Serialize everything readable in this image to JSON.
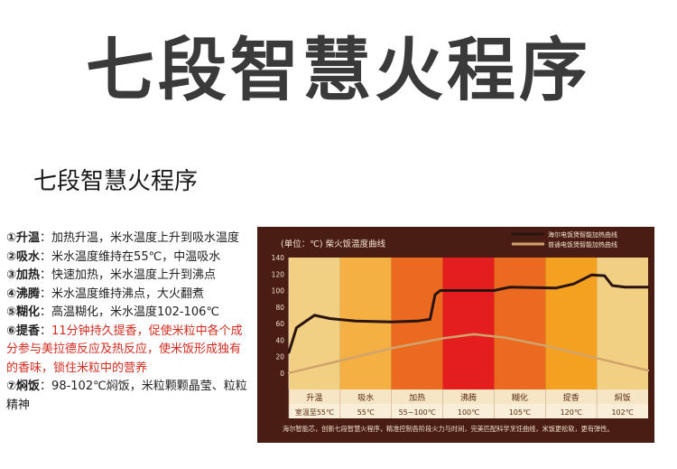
{
  "headline": "七段智慧火程序",
  "subheadline": "七段智慧火程序",
  "steps": [
    {
      "num": "①",
      "name": "升温",
      "sep": "：",
      "desc": "加热升温，米水温度上升到吸水温度",
      "red": false
    },
    {
      "num": "②",
      "name": "吸水",
      "sep": "：",
      "desc": "米水温度维持在55℃，中温吸水",
      "red": false
    },
    {
      "num": "③",
      "name": "加热",
      "sep": "：",
      "desc": "快速加热，米水温度上升到沸点",
      "red": false
    },
    {
      "num": "④",
      "name": "沸腾",
      "sep": "：",
      "desc": "米水温度维持沸点，大火翻煮",
      "red": false
    },
    {
      "num": "⑤",
      "name": "糊化",
      "sep": "：",
      "desc": "高温糊化，米水温度102-106℃",
      "red": false
    },
    {
      "num": "⑥",
      "name": "提香",
      "sep": "：",
      "desc": "11分钟持久提香，促使米粒中各个成分参与美拉德反应及热反应，使米饭形成独有的香味，锁住米粒中的营养",
      "red": true
    },
    {
      "num": "⑦",
      "name": "焖饭",
      "sep": "：",
      "desc": "98-102℃焖饭，米粒颗颗晶莹、粒粒精神",
      "red": false
    }
  ],
  "chart_data": {
    "type": "line",
    "title": "(单位：℃) 柴火饭温度曲线",
    "yticks": [
      0,
      20,
      40,
      60,
      80,
      100,
      120,
      140
    ],
    "ylim": [
      -20,
      140
    ],
    "stages": [
      {
        "label": "升温",
        "temp": "室温至55℃",
        "color": "#f1cf83"
      },
      {
        "label": "吸水",
        "temp": "55℃",
        "color": "#f4b043"
      },
      {
        "label": "加热",
        "temp": "55~100℃",
        "color": "#ec6a1f"
      },
      {
        "label": "沸腾",
        "temp": "100℃",
        "color": "#e41e1e"
      },
      {
        "label": "糊化",
        "temp": "105℃",
        "color": "#ec6a1f"
      },
      {
        "label": "提香",
        "temp": "120℃",
        "color": "#f4a020"
      },
      {
        "label": "焖饭",
        "temp": "102℃",
        "color": "#f1cf83"
      }
    ],
    "x_stage_position": "0 = start of 升温, 7 = end of 焖饭",
    "series": [
      {
        "name": "海尔电饭煲智能加热曲线",
        "color": "#2a1410",
        "points": [
          [
            0,
            25
          ],
          [
            0.15,
            55
          ],
          [
            0.5,
            70
          ],
          [
            0.8,
            66
          ],
          [
            1.3,
            63
          ],
          [
            2.0,
            62
          ],
          [
            2.5,
            63
          ],
          [
            2.75,
            65
          ],
          [
            2.85,
            95
          ],
          [
            2.95,
            100
          ],
          [
            3.5,
            100
          ],
          [
            4.0,
            100
          ],
          [
            4.3,
            104
          ],
          [
            5.2,
            103
          ],
          [
            5.55,
            108
          ],
          [
            5.9,
            119
          ],
          [
            6.15,
            118
          ],
          [
            6.3,
            106
          ],
          [
            6.55,
            104
          ],
          [
            7.0,
            104
          ]
        ]
      },
      {
        "name": "普通电饭煲智能加热曲线",
        "color": "#d1a46c",
        "points": [
          [
            0,
            0
          ],
          [
            1,
            15
          ],
          [
            2,
            30
          ],
          [
            3,
            42
          ],
          [
            3.6,
            47
          ],
          [
            4.2,
            43
          ],
          [
            5,
            33
          ],
          [
            6,
            18
          ],
          [
            7,
            3
          ]
        ]
      }
    ],
    "footnote": "海尔智能芯，创新七段智慧火程序，精准控制各阶段火力与时间，完美匹配科学烹饪曲线，米饭更松软，更有弹性。"
  }
}
